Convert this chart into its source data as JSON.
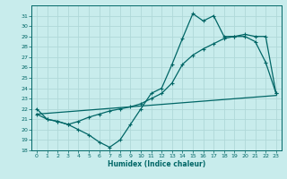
{
  "title": "",
  "xlabel": "Humidex (Indice chaleur)",
  "bg_color": "#c8ecec",
  "grid_color": "#b0d8d8",
  "line_color": "#006666",
  "xlim": [
    -0.5,
    23.5
  ],
  "ylim": [
    18,
    32
  ],
  "xticks": [
    0,
    1,
    2,
    3,
    4,
    5,
    6,
    7,
    8,
    9,
    10,
    11,
    12,
    13,
    14,
    15,
    16,
    17,
    18,
    19,
    20,
    21,
    22,
    23
  ],
  "yticks": [
    18,
    19,
    20,
    21,
    22,
    23,
    24,
    25,
    26,
    27,
    28,
    29,
    30,
    31
  ],
  "line1_x": [
    0,
    1,
    2,
    3,
    4,
    5,
    6,
    7,
    8,
    9,
    10,
    11,
    12,
    13,
    14,
    15,
    16,
    17,
    18,
    19,
    20,
    21,
    22,
    23
  ],
  "line1_y": [
    22,
    21,
    20.8,
    20.5,
    20,
    19.5,
    18.8,
    18.3,
    19,
    20.5,
    22,
    23.5,
    24,
    26.3,
    28.8,
    31.2,
    30.5,
    31,
    29,
    29,
    29,
    28.5,
    26.5,
    23.5
  ],
  "line2_x": [
    0,
    1,
    2,
    3,
    4,
    5,
    6,
    7,
    8,
    9,
    10,
    11,
    12,
    13,
    14,
    15,
    16,
    17,
    18,
    19,
    20,
    21,
    22,
    23
  ],
  "line2_y": [
    21.5,
    21,
    20.8,
    20.5,
    20.8,
    21.2,
    21.5,
    21.8,
    22,
    22.2,
    22.5,
    23,
    23.5,
    24.5,
    26.3,
    27.2,
    27.8,
    28.3,
    28.8,
    29,
    29.2,
    29,
    29,
    23.5
  ],
  "line3_x": [
    0,
    23
  ],
  "line3_y": [
    21.5,
    23.3
  ]
}
